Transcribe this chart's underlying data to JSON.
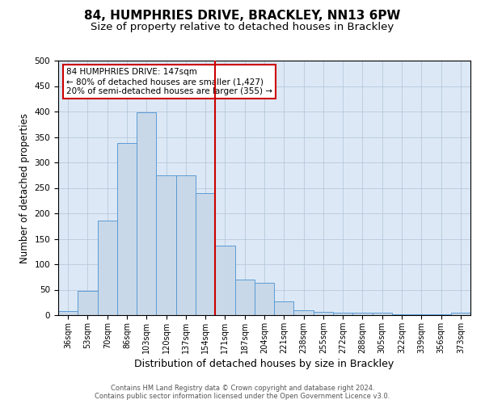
{
  "title": "84, HUMPHRIES DRIVE, BRACKLEY, NN13 6PW",
  "subtitle": "Size of property relative to detached houses in Brackley",
  "xlabel": "Distribution of detached houses by size in Brackley",
  "ylabel": "Number of detached properties",
  "categories": [
    "36sqm",
    "53sqm",
    "70sqm",
    "86sqm",
    "103sqm",
    "120sqm",
    "137sqm",
    "154sqm",
    "171sqm",
    "187sqm",
    "204sqm",
    "221sqm",
    "238sqm",
    "255sqm",
    "272sqm",
    "288sqm",
    "305sqm",
    "322sqm",
    "339sqm",
    "356sqm",
    "373sqm"
  ],
  "values": [
    8,
    47,
    185,
    338,
    398,
    275,
    275,
    240,
    137,
    70,
    63,
    27,
    10,
    6,
    5,
    4,
    4,
    1,
    1,
    1,
    4
  ],
  "bar_color": "#c8d8e8",
  "bar_edge_color": "#5b9bd5",
  "vline_color": "#cc0000",
  "ylim": [
    0,
    500
  ],
  "yticks": [
    0,
    50,
    100,
    150,
    200,
    250,
    300,
    350,
    400,
    450,
    500
  ],
  "annotation_text": "84 HUMPHRIES DRIVE: 147sqm\n← 80% of detached houses are smaller (1,427)\n20% of semi-detached houses are larger (355) →",
  "annotation_box_color": "#ffffff",
  "annotation_box_edge": "#cc0000",
  "bg_color": "#dce8f5",
  "footer": "Contains HM Land Registry data © Crown copyright and database right 2024.\nContains public sector information licensed under the Open Government Licence v3.0.",
  "title_fontsize": 11,
  "subtitle_fontsize": 9.5,
  "xlabel_fontsize": 9,
  "ylabel_fontsize": 8.5,
  "grid_color": "#b0c4d8",
  "vline_xindex": 7.5
}
